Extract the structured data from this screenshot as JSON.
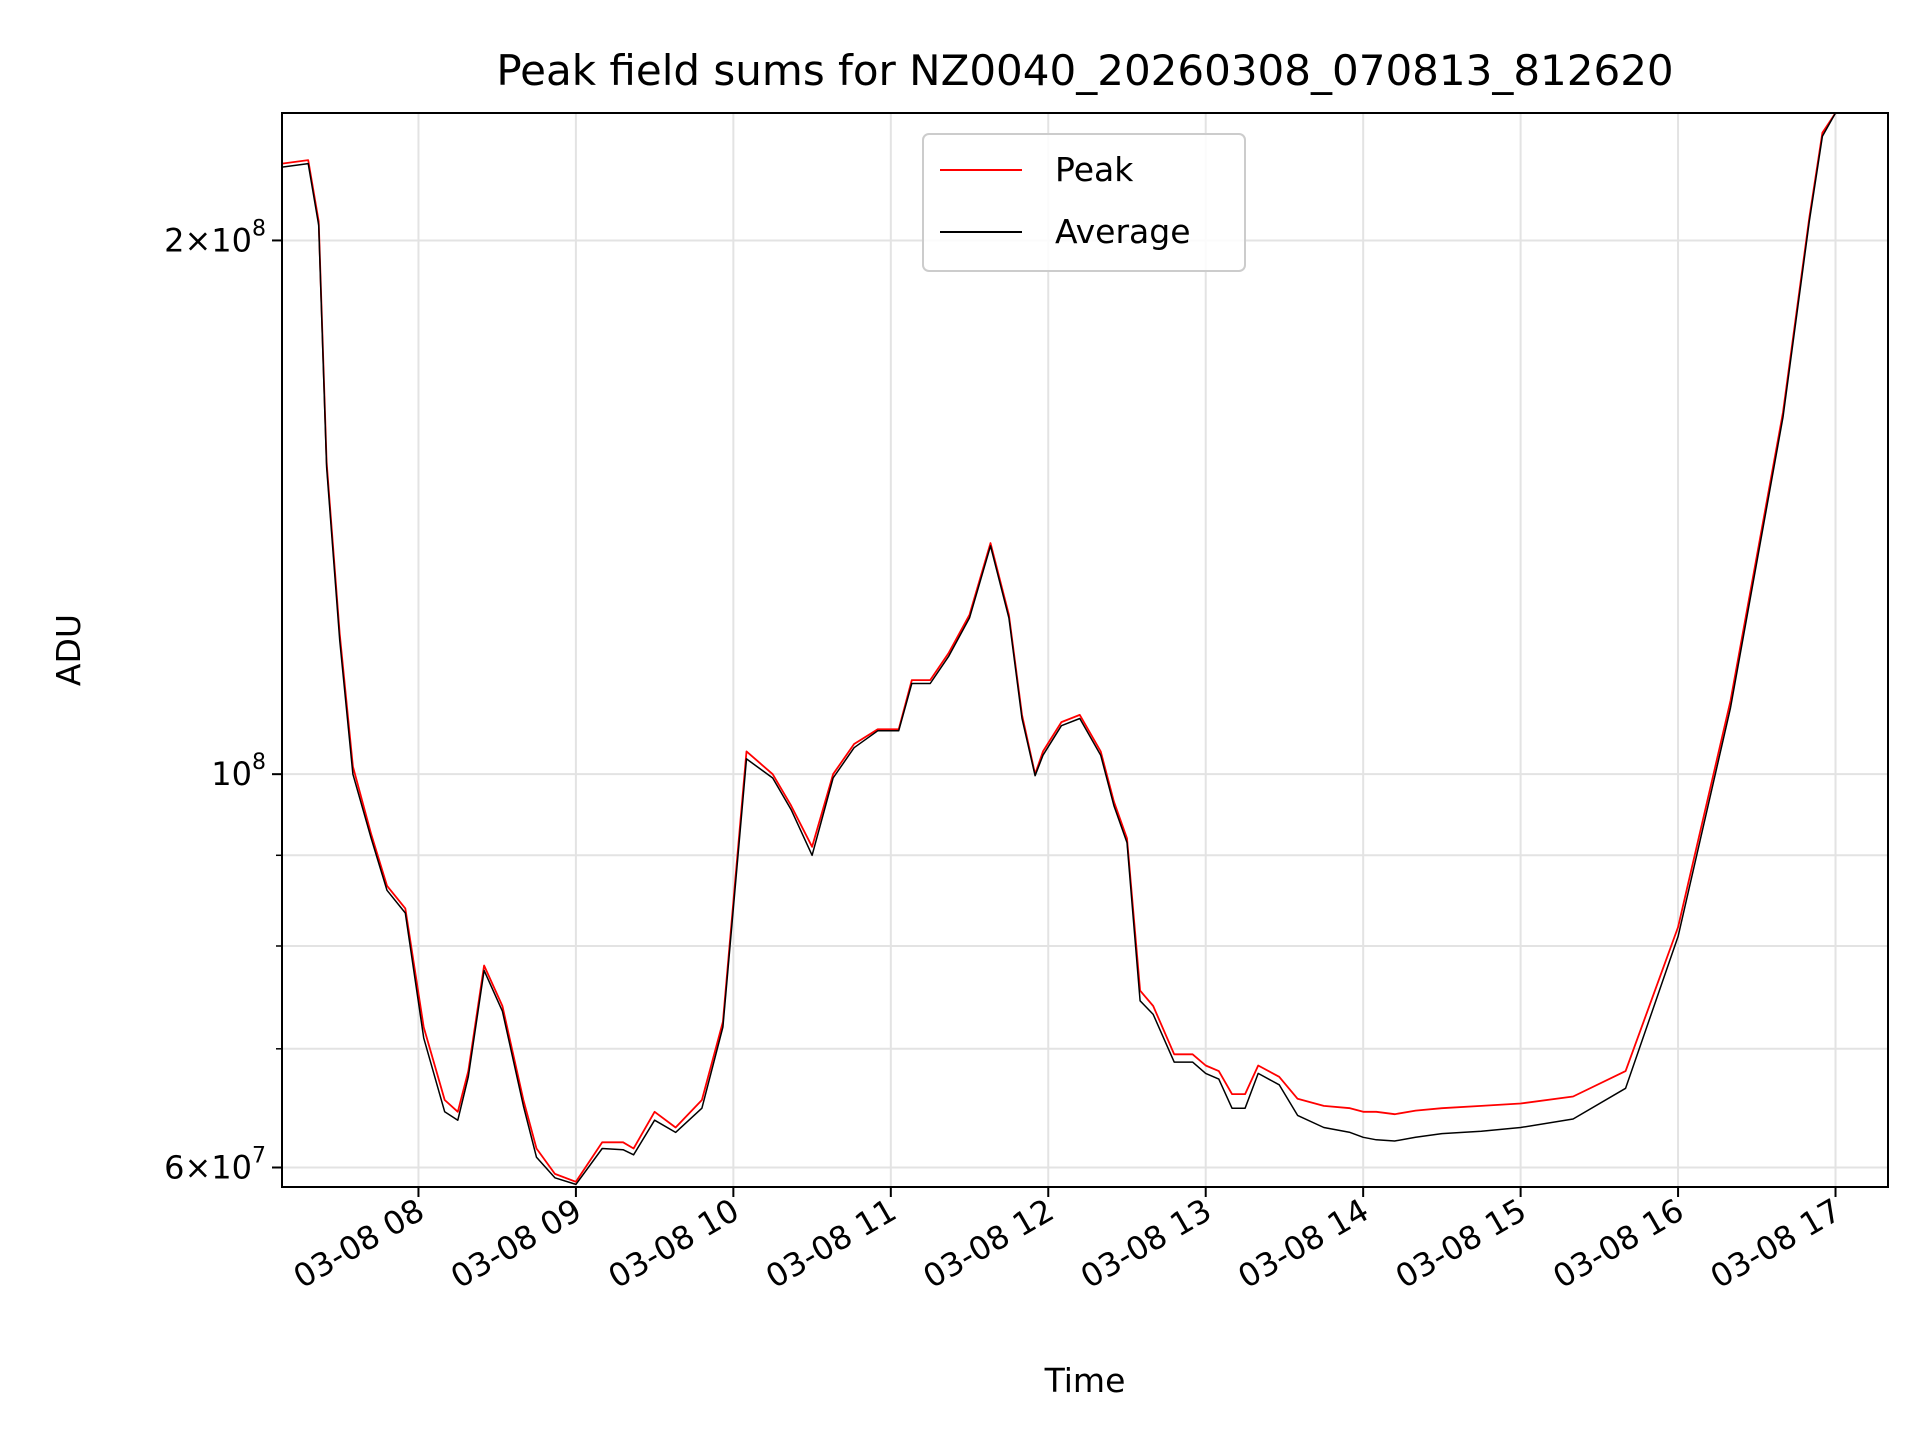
{
  "chart_data": {
    "type": "line",
    "title": "Peak field sums for NZ0040_20260308_070813_812620",
    "xlabel": "Time",
    "ylabel": "ADU",
    "y_scale": "log",
    "grid": true,
    "legend_position": "top-center",
    "xlim": [
      "03-08 07:08",
      "03-08 17:20"
    ],
    "ylim": [
      58500000,
      236000000
    ],
    "x_ticks": [
      "03-08 08",
      "03-08 09",
      "03-08 10",
      "03-08 11",
      "03-08 12",
      "03-08 13",
      "03-08 14",
      "03-08 15",
      "03-08 16",
      "03-08 17"
    ],
    "y_ticks": [
      {
        "value": 200000000,
        "mantissa": "2",
        "exponent": "8"
      },
      {
        "value": 100000000,
        "mantissa": "",
        "exponent": "8"
      },
      {
        "value": 60000000,
        "mantissa": "6",
        "exponent": "7"
      }
    ],
    "series": [
      {
        "name": "Peak",
        "color": "#ff0000",
        "x": [
          "03-08 07:08",
          "03-08 07:18",
          "03-08 07:22",
          "03-08 07:25",
          "03-08 07:30",
          "03-08 07:35",
          "03-08 07:42",
          "03-08 07:48",
          "03-08 07:55",
          "03-08 08:02",
          "03-08 08:10",
          "03-08 08:15",
          "03-08 08:19",
          "03-08 08:25",
          "03-08 08:32",
          "03-08 08:40",
          "03-08 08:45",
          "03-08 08:52",
          "03-08 09:00",
          "03-08 09:10",
          "03-08 09:18",
          "03-08 09:22",
          "03-08 09:30",
          "03-08 09:38",
          "03-08 09:48",
          "03-08 09:56",
          "03-08 10:05",
          "03-08 10:15",
          "03-08 10:22",
          "03-08 10:30",
          "03-08 10:38",
          "03-08 10:46",
          "03-08 10:55",
          "03-08 11:03",
          "03-08 11:08",
          "03-08 11:15",
          "03-08 11:22",
          "03-08 11:30",
          "03-08 11:38",
          "03-08 11:45",
          "03-08 11:50",
          "03-08 11:55",
          "03-08 11:58",
          "03-08 12:05",
          "03-08 12:12",
          "03-08 12:20",
          "03-08 12:25",
          "03-08 12:30",
          "03-08 12:35",
          "03-08 12:40",
          "03-08 12:48",
          "03-08 12:55",
          "03-08 13:00",
          "03-08 13:05",
          "03-08 13:10",
          "03-08 13:15",
          "03-08 13:20",
          "03-08 13:28",
          "03-08 13:35",
          "03-08 13:45",
          "03-08 13:55",
          "03-08 14:00",
          "03-08 14:05",
          "03-08 14:12",
          "03-08 14:20",
          "03-08 14:30",
          "03-08 14:45",
          "03-08 15:00",
          "03-08 15:20",
          "03-08 15:40",
          "03-08 16:00",
          "03-08 16:20",
          "03-08 16:40",
          "03-08 16:50",
          "03-08 16:55",
          "03-08 17:00",
          "03-08 17:05",
          "03-08 17:10",
          "03-08 17:15",
          "03-08 17:20"
        ],
        "y": [
          221000000,
          222000000,
          205000000,
          150000000,
          120000000,
          101000000,
          92500000,
          86500000,
          84000000,
          72000000,
          65500000,
          64500000,
          68000000,
          78000000,
          74000000,
          65500000,
          61500000,
          59500000,
          58900000,
          62000000,
          62000000,
          61500000,
          64500000,
          63200000,
          65500000,
          72500000,
          103000000,
          100000000,
          96000000,
          91000000,
          100000000,
          104000000,
          106000000,
          106000000,
          113000000,
          113000000,
          117000000,
          123000000,
          135000000,
          123000000,
          108000000,
          100000000,
          103000000,
          107000000,
          108000000,
          103000000,
          96500000,
          92000000,
          75500000,
          74000000,
          69500000,
          69500000,
          68500000,
          68000000,
          66000000,
          66000000,
          68500000,
          67500000,
          65600000,
          65000000,
          64800000,
          64500000,
          64500000,
          64300000,
          64600000,
          64800000,
          65000000,
          65200000,
          65800000,
          68000000,
          82000000,
          110000000,
          160000000,
          206000000,
          230000000,
          236000000,
          236000000,
          236000000,
          236000000,
          236000000
        ]
      },
      {
        "name": "Average",
        "color": "#000000",
        "x": [
          "03-08 07:08",
          "03-08 07:18",
          "03-08 07:22",
          "03-08 07:25",
          "03-08 07:30",
          "03-08 07:35",
          "03-08 07:42",
          "03-08 07:48",
          "03-08 07:55",
          "03-08 08:02",
          "03-08 08:10",
          "03-08 08:15",
          "03-08 08:19",
          "03-08 08:25",
          "03-08 08:32",
          "03-08 08:40",
          "03-08 08:45",
          "03-08 08:52",
          "03-08 09:00",
          "03-08 09:10",
          "03-08 09:18",
          "03-08 09:22",
          "03-08 09:30",
          "03-08 09:38",
          "03-08 09:48",
          "03-08 09:56",
          "03-08 10:05",
          "03-08 10:15",
          "03-08 10:22",
          "03-08 10:30",
          "03-08 10:38",
          "03-08 10:46",
          "03-08 10:55",
          "03-08 11:03",
          "03-08 11:08",
          "03-08 11:15",
          "03-08 11:22",
          "03-08 11:30",
          "03-08 11:38",
          "03-08 11:45",
          "03-08 11:50",
          "03-08 11:55",
          "03-08 11:58",
          "03-08 12:05",
          "03-08 12:12",
          "03-08 12:20",
          "03-08 12:25",
          "03-08 12:30",
          "03-08 12:35",
          "03-08 12:40",
          "03-08 12:48",
          "03-08 12:55",
          "03-08 13:00",
          "03-08 13:05",
          "03-08 13:10",
          "03-08 13:15",
          "03-08 13:20",
          "03-08 13:28",
          "03-08 13:35",
          "03-08 13:45",
          "03-08 13:55",
          "03-08 14:00",
          "03-08 14:05",
          "03-08 14:12",
          "03-08 14:20",
          "03-08 14:30",
          "03-08 14:45",
          "03-08 15:00",
          "03-08 15:20",
          "03-08 15:40",
          "03-08 16:00",
          "03-08 16:20",
          "03-08 16:40",
          "03-08 16:50",
          "03-08 16:55",
          "03-08 17:00",
          "03-08 17:05",
          "03-08 17:10",
          "03-08 17:15",
          "03-08 17:20"
        ],
        "y": [
          220000000,
          221000000,
          204000000,
          149000000,
          119000000,
          100000000,
          92000000,
          86000000,
          83500000,
          71000000,
          64500000,
          63800000,
          67500000,
          77500000,
          73500000,
          65000000,
          60800000,
          59200000,
          58700000,
          61500000,
          61400000,
          61000000,
          63800000,
          62800000,
          64800000,
          72000000,
          102000000,
          99500000,
          95500000,
          90000000,
          99500000,
          103500000,
          105800000,
          105800000,
          112500000,
          112500000,
          116500000,
          122500000,
          134500000,
          122500000,
          107500000,
          99800000,
          102500000,
          106500000,
          107500000,
          102500000,
          96000000,
          91500000,
          74500000,
          73200000,
          68800000,
          68800000,
          67800000,
          67300000,
          64800000,
          64800000,
          67800000,
          66800000,
          64200000,
          63200000,
          62800000,
          62400000,
          62200000,
          62100000,
          62400000,
          62700000,
          62900000,
          63200000,
          63900000,
          66500000,
          81000000,
          109000000,
          159000000,
          205000000,
          229000000,
          236000000,
          236000000,
          236000000,
          236000000,
          236000000
        ]
      }
    ]
  }
}
